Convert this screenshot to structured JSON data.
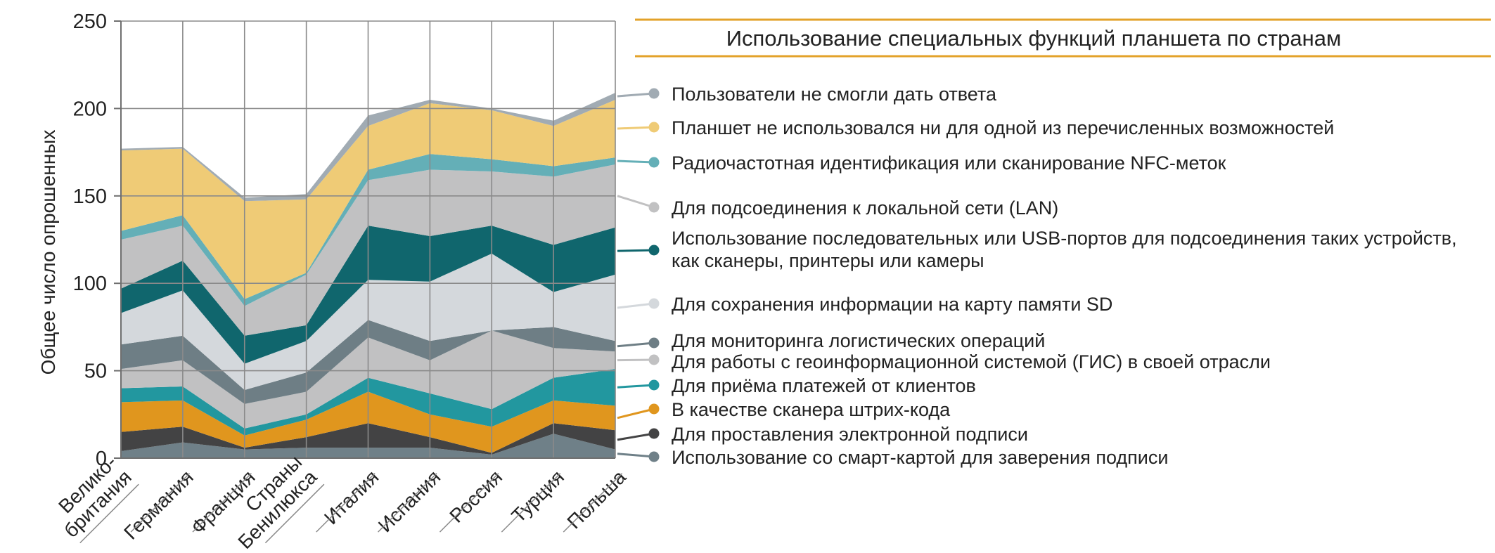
{
  "chart_data": {
    "type": "area",
    "stacked": true,
    "title": "Использование специальных функций планшета по странам",
    "xlabel": "",
    "ylabel": "Общее число опрошенных",
    "ylim": [
      0,
      250
    ],
    "yticks": [
      0,
      50,
      100,
      150,
      200,
      250
    ],
    "grid": true,
    "legend_position": "right",
    "categories": [
      [
        "Велико-",
        "британия"
      ],
      [
        "Германия"
      ],
      [
        "Франция"
      ],
      [
        "Страны",
        "Бенилюкса"
      ],
      [
        "Италия"
      ],
      [
        "Испания"
      ],
      [
        "Россия"
      ],
      [
        "Турция"
      ],
      [
        "Польша"
      ]
    ],
    "series": [
      {
        "name": "Использование со смарт-картой для заверения подписи",
        "color": "#6f8088",
        "values": [
          4,
          9,
          5,
          6,
          6,
          6,
          2,
          14,
          5
        ]
      },
      {
        "name": "Для проставления электронной подписи",
        "color": "#434344",
        "values": [
          11,
          9,
          1,
          6,
          14,
          6,
          1,
          6,
          11
        ]
      },
      {
        "name": "В качестве сканера штрих-кода",
        "color": "#e0961e",
        "values": [
          17,
          15,
          7,
          10,
          18,
          13,
          15,
          13,
          14
        ]
      },
      {
        "name": "Для приёма платежей от клиентов",
        "color": "#22979f",
        "values": [
          8,
          8,
          4,
          3,
          8,
          12,
          10,
          13,
          21
        ]
      },
      {
        "name": "Для работы с геоинформационной системой (ГИС) в своей отрасли",
        "color": "#c1c1c2",
        "values": [
          11,
          15,
          14,
          13,
          23,
          19,
          45,
          17,
          10
        ]
      },
      {
        "name": "Для мониторинга логистических операций",
        "color": "#6e7e85",
        "values": [
          14,
          14,
          8,
          11,
          10,
          11,
          0,
          12,
          6
        ]
      },
      {
        "name": "Для сохранения информации на карту памяти SD",
        "color": "#d4d8dc",
        "values": [
          18,
          26,
          15,
          18,
          23,
          34,
          44,
          20,
          38
        ]
      },
      {
        "name": "Использование последовательных или USB-портов для подсоединения таких устройств, как сканеры, принтеры или камеры",
        "color": "#10666d",
        "values": [
          14,
          17,
          16,
          9,
          31,
          26,
          16,
          27,
          27
        ]
      },
      {
        "name": "Для подсоединения к локальной сети (LAN)",
        "color": "#c1c1c2",
        "values": [
          28,
          20,
          17,
          29,
          26,
          38,
          31,
          39,
          36
        ]
      },
      {
        "name": "Радиочастотная идентификация или сканирование NFC-меток",
        "color": "#64afb7",
        "values": [
          5,
          6,
          4,
          1,
          6,
          9,
          7,
          6,
          4
        ]
      },
      {
        "name": "Планшет не использовался ни для одной из перечисленных возможностей",
        "color": "#efcb76",
        "values": [
          46,
          38,
          56,
          42,
          25,
          29,
          28,
          23,
          33
        ]
      },
      {
        "name": "Пользователи не смогли дать ответа",
        "color": "#a1abb3",
        "values": [
          1,
          1,
          2,
          3,
          6,
          2,
          1,
          3,
          4
        ]
      }
    ],
    "legend_order": [
      "Пользователи не смогли дать ответа",
      "Планшет не использовался ни для одной из перечисленных возможностей",
      "Радиочастотная идентификация или сканирование NFC-меток",
      "Для подсоединения к локальной сети (LAN)",
      "Использование последовательных или USB-портов для подсоединения таких устройств, как сканеры, принтеры или камеры",
      "Для сохранения информации на карту памяти SD",
      "Для мониторинга логистических операций",
      "Для работы с геоинформационной системой (ГИС) в своей отрасли",
      "Для приёма платежей от клиентов",
      "В качестве сканера штрих-кода",
      "Для проставления электронной подписи",
      "Использование со смарт-картой для заверения подписи"
    ],
    "legend_lines": [
      [
        "Пользователи не смогли дать ответа"
      ],
      [
        "Планшет не использовался ни для одной из перечисленных возможностей"
      ],
      [
        "Радиочастотная идентификация или сканирование NFC-меток"
      ],
      [
        "Для подсоединения к локальной сети (LAN)"
      ],
      [
        "Использование последовательных или USB-портов для подсоединения таких устройств,",
        "как сканеры, принтеры или камеры"
      ],
      [
        "Для сохранения информации на карту памяти SD"
      ],
      [
        "Для мониторинга логистических операций"
      ],
      [
        "Для работы с геоинформационной системой (ГИС) в своей отрасли"
      ],
      [
        "Для приёма платежей от клиентов"
      ],
      [
        "В качестве сканера штрих-кода"
      ],
      [
        "Для проставления электронной подписи"
      ],
      [
        "Использование со смарт-картой для заверения подписи"
      ]
    ],
    "accent_color": "#e3a22a"
  }
}
